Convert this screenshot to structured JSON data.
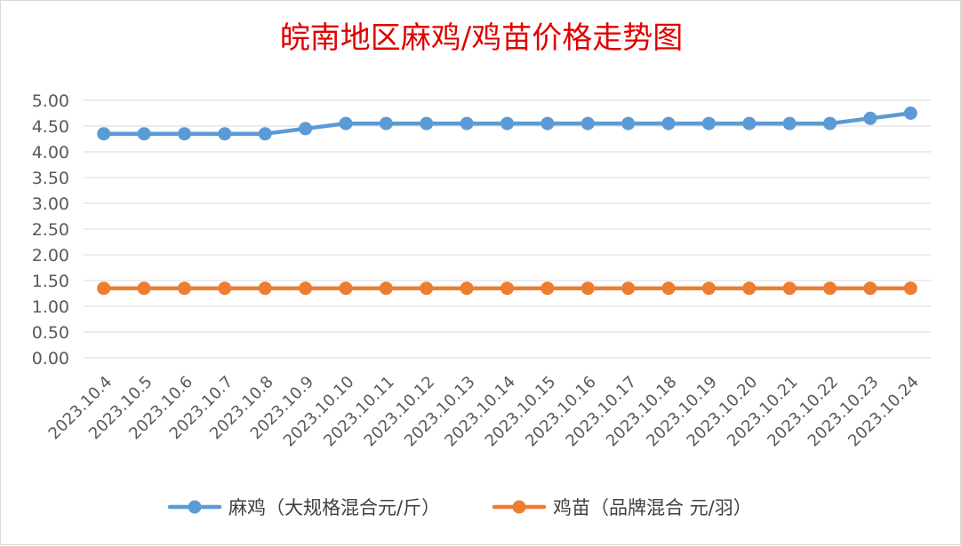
{
  "chart_data": {
    "type": "line",
    "title": "皖南地区麻鸡/鸡苗价格走势图",
    "categories": [
      "2023.10.4",
      "2023.10.5",
      "2023.10.6",
      "2023.10.7",
      "2023.10.8",
      "2023.10.9",
      "2023.10.10",
      "2023.10.11",
      "2023.10.12",
      "2023.10.13",
      "2023.10.14",
      "2023.10.15",
      "2023.10.16",
      "2023.10.17",
      "2023.10.18",
      "2023.10.19",
      "2023.10.20",
      "2023.10.21",
      "2023.10.22",
      "2023.10.23",
      "2023.10.24"
    ],
    "series": [
      {
        "name": "麻鸡（大规格混合元/斤）",
        "color": "#5b9bd5",
        "values": [
          4.35,
          4.35,
          4.35,
          4.35,
          4.35,
          4.45,
          4.55,
          4.55,
          4.55,
          4.55,
          4.55,
          4.55,
          4.55,
          4.55,
          4.55,
          4.55,
          4.55,
          4.55,
          4.55,
          4.65,
          4.75
        ]
      },
      {
        "name": "鸡苗（品牌混合 元/羽）",
        "color": "#ed7d31",
        "values": [
          1.35,
          1.35,
          1.35,
          1.35,
          1.35,
          1.35,
          1.35,
          1.35,
          1.35,
          1.35,
          1.35,
          1.35,
          1.35,
          1.35,
          1.35,
          1.35,
          1.35,
          1.35,
          1.35,
          1.35,
          1.35
        ]
      }
    ],
    "ylim": [
      0,
      5
    ],
    "ytick_step": 0.5,
    "ytick_labels": [
      "0.00",
      "0.50",
      "1.00",
      "1.50",
      "2.00",
      "2.50",
      "3.00",
      "3.50",
      "4.00",
      "4.50",
      "5.00"
    ],
    "xlabel": "",
    "ylabel": "",
    "grid": true,
    "legend": "bottom"
  }
}
